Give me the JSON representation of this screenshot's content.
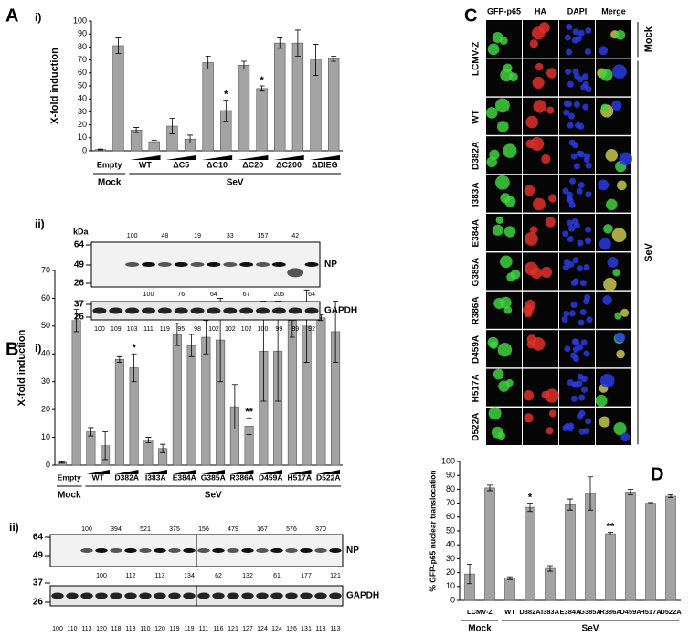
{
  "chart_data": [
    {
      "type": "bar",
      "panel": "A",
      "subpanel": "i)",
      "ylabel": "X-fold induction",
      "ylim": [
        0,
        100
      ],
      "yticks": [
        0,
        10,
        20,
        30,
        40,
        50,
        60,
        70,
        80,
        90,
        100
      ],
      "color": "#a3a3a3",
      "dose_wedge": true,
      "groups": [
        {
          "label": "Empty",
          "values": [
            1,
            81
          ],
          "errors": [
            0.3,
            6
          ]
        },
        {
          "label": "WT",
          "values": [
            16,
            7
          ],
          "errors": [
            2,
            1
          ]
        },
        {
          "label": "ΔC5",
          "values": [
            19,
            9
          ],
          "errors": [
            6,
            3
          ]
        },
        {
          "label": "ΔC10",
          "values": [
            68,
            31
          ],
          "errors": [
            5,
            8
          ],
          "annotations": [
            null,
            "*"
          ]
        },
        {
          "label": "ΔC20",
          "values": [
            66,
            48
          ],
          "errors": [
            3,
            2
          ],
          "annotations": [
            null,
            "*"
          ]
        },
        {
          "label": "ΔC200",
          "values": [
            83,
            83
          ],
          "errors": [
            4,
            10
          ]
        },
        {
          "label": "ΔDIEG",
          "values": [
            70,
            71
          ],
          "errors": [
            12,
            2
          ]
        }
      ],
      "conditions": [
        {
          "label": "Mock",
          "groups": 1
        },
        {
          "label": "SeV",
          "groups": 6
        }
      ]
    },
    {
      "type": "bar",
      "panel": "B",
      "subpanel": "i)",
      "ylabel": "X-fold induction",
      "ylim": [
        0,
        70
      ],
      "yticks": [
        0,
        10,
        20,
        30,
        40,
        50,
        60,
        70
      ],
      "color": "#a3a3a3",
      "dose_wedge": true,
      "groups": [
        {
          "label": "Empty",
          "values": [
            1,
            52
          ],
          "errors": [
            0.3,
            4
          ]
        },
        {
          "label": "WT",
          "values": [
            12,
            7
          ],
          "errors": [
            1.5,
            5
          ]
        },
        {
          "label": "D382A",
          "values": [
            38,
            35
          ],
          "errors": [
            1,
            5
          ],
          "annotations": [
            null,
            "*"
          ]
        },
        {
          "label": "I383A",
          "values": [
            9,
            6
          ],
          "errors": [
            1,
            1.5
          ]
        },
        {
          "label": "E384A",
          "values": [
            47,
            43
          ],
          "errors": [
            4,
            4
          ]
        },
        {
          "label": "G385A",
          "values": [
            46,
            45
          ],
          "errors": [
            6,
            15
          ]
        },
        {
          "label": "R386A",
          "values": [
            21,
            14
          ],
          "errors": [
            8,
            3
          ],
          "annotations": [
            null,
            "**"
          ]
        },
        {
          "label": "D459A",
          "values": [
            41,
            41
          ],
          "errors": [
            18,
            18
          ]
        },
        {
          "label": "H517A",
          "values": [
            52,
            50
          ],
          "errors": [
            6,
            13
          ]
        },
        {
          "label": "D522A",
          "values": [
            53,
            48
          ],
          "errors": [
            1,
            11
          ]
        }
      ],
      "conditions": [
        {
          "label": "Mock",
          "groups": 1
        },
        {
          "label": "SeV",
          "groups": 9
        }
      ]
    },
    {
      "type": "bar",
      "panel": "D",
      "ylabel": "% GFP-p65 nuclear translocation",
      "ylim": [
        0,
        100
      ],
      "yticks": [
        0,
        10,
        20,
        30,
        40,
        50,
        60,
        70,
        80,
        90,
        100
      ],
      "color": "#a3a3a3",
      "dose_wedge": false,
      "groups": [
        {
          "label": "LCMV-Z",
          "values": [
            19,
            81
          ],
          "errors": [
            7,
            2
          ]
        },
        {
          "label": "WT",
          "values": [
            16
          ],
          "errors": [
            1
          ]
        },
        {
          "label": "D382A",
          "values": [
            67
          ],
          "errors": [
            3
          ],
          "annotations": [
            "*"
          ]
        },
        {
          "label": "I383A",
          "values": [
            23
          ],
          "errors": [
            2
          ]
        },
        {
          "label": "E384A",
          "values": [
            69
          ],
          "errors": [
            4
          ]
        },
        {
          "label": "G385A",
          "values": [
            77
          ],
          "errors": [
            12
          ]
        },
        {
          "label": "R386A",
          "values": [
            48
          ],
          "errors": [
            1
          ],
          "annotations": [
            "**"
          ]
        },
        {
          "label": "D459A",
          "values": [
            78
          ],
          "errors": [
            2
          ]
        },
        {
          "label": "H517A",
          "values": [
            70
          ],
          "errors": [
            0.5
          ]
        },
        {
          "label": "D522A",
          "values": [
            75
          ],
          "errors": [
            1
          ]
        }
      ],
      "conditions": [
        {
          "label": "Mock",
          "groups": 1
        },
        {
          "label": "SeV",
          "groups": 9
        }
      ]
    }
  ],
  "blots": [
    {
      "subpanel": "ii)",
      "unit": "kDa",
      "np": {
        "label": "NP",
        "markers": [
          "64",
          "49",
          "26"
        ],
        "above": [
          "100",
          "48",
          "19",
          "33",
          "157",
          "42"
        ],
        "below": [
          "100",
          "76",
          "64",
          "67",
          "205",
          "64"
        ]
      },
      "gapdh": {
        "label": "GAPDH",
        "markers": [
          "37",
          "26"
        ],
        "values": [
          "100",
          "109",
          "103",
          "111",
          "119",
          "95",
          "98",
          "102",
          "102",
          "102",
          "100",
          "99",
          "89",
          "92"
        ]
      }
    },
    {
      "subpanel": "ii)",
      "np": {
        "label": "NP",
        "markers": [
          "64",
          "49"
        ],
        "above": [
          "100",
          "394",
          "521",
          "375",
          "156",
          "479",
          "167",
          "576",
          "370"
        ],
        "below": [
          "100",
          "112",
          "113",
          "134",
          "62",
          "132",
          "61",
          "177",
          "121"
        ]
      },
      "gapdh": {
        "label": "GAPDH",
        "markers": [
          "37",
          "26"
        ],
        "values": [
          "100",
          "110",
          "113",
          "120",
          "118",
          "113",
          "110",
          "120",
          "119",
          "119",
          "111",
          "116",
          "121",
          "127",
          "124",
          "124",
          "126",
          "131",
          "113",
          "113"
        ]
      }
    }
  ],
  "microscopy": {
    "panel": "C",
    "columns": [
      "GFP-p65",
      "HA",
      "DAPI",
      "Merge"
    ],
    "rows": [
      {
        "label": "LCMV-Z",
        "images": 2
      },
      {
        "label": "WT",
        "images": 1
      },
      {
        "label": "D382A",
        "images": 1
      },
      {
        "label": "I383A",
        "images": 1
      },
      {
        "label": "E384A",
        "images": 1
      },
      {
        "label": "G385A",
        "images": 1
      },
      {
        "label": "R386A",
        "images": 1
      },
      {
        "label": "D459A",
        "images": 1
      },
      {
        "label": "H517A",
        "images": 1
      },
      {
        "label": "D522A",
        "images": 1
      }
    ],
    "conditions": [
      {
        "label": "Mock",
        "rows": 1
      },
      {
        "label": "SeV",
        "rows": 10
      }
    ]
  }
}
